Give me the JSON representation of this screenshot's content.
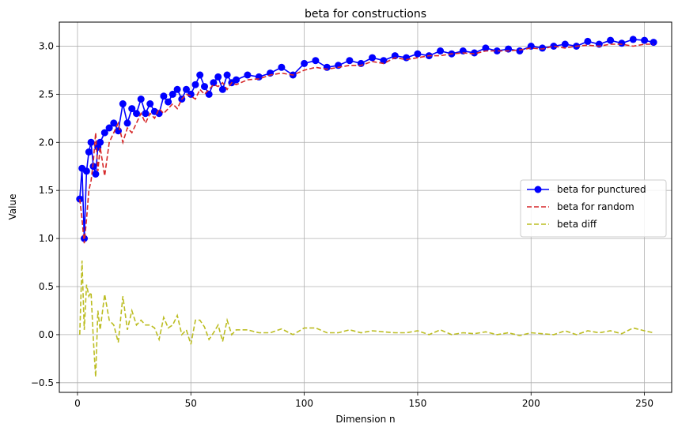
{
  "chart_data": {
    "type": "line",
    "title": "beta for constructions",
    "xlabel": "Dimension n",
    "ylabel": "Value",
    "xlim": [
      -8,
      262
    ],
    "ylim": [
      -0.6,
      3.25
    ],
    "x_ticks": [
      0,
      50,
      100,
      150,
      200,
      250
    ],
    "y_ticks": [
      -0.5,
      0.0,
      0.5,
      1.0,
      1.5,
      2.0,
      2.5,
      3.0
    ],
    "x_tick_labels": [
      "0",
      "50",
      "100",
      "150",
      "200",
      "250"
    ],
    "y_tick_labels": [
      "−0.5",
      "0.0",
      "0.5",
      "1.0",
      "1.5",
      "2.0",
      "2.5",
      "3.0"
    ],
    "grid": true,
    "legend_position": "center-right",
    "series": [
      {
        "name": "beta for punctured",
        "color": "#0000ff",
        "style": "solid-marker",
        "x": [
          1,
          2,
          3,
          4,
          5,
          6,
          7,
          8,
          9,
          10,
          12,
          14,
          16,
          18,
          20,
          22,
          24,
          26,
          28,
          30,
          32,
          34,
          36,
          38,
          40,
          42,
          44,
          46,
          48,
          50,
          52,
          54,
          56,
          58,
          60,
          62,
          64,
          66,
          68,
          70,
          75,
          80,
          85,
          90,
          95,
          100,
          105,
          110,
          115,
          120,
          125,
          130,
          135,
          140,
          145,
          150,
          155,
          160,
          165,
          170,
          175,
          180,
          185,
          190,
          195,
          200,
          205,
          210,
          215,
          220,
          225,
          230,
          235,
          240,
          245,
          250,
          254
        ],
        "y": [
          1.41,
          1.73,
          1.0,
          1.7,
          1.9,
          2.0,
          1.75,
          1.67,
          1.95,
          2.0,
          2.1,
          2.15,
          2.2,
          2.12,
          2.4,
          2.2,
          2.35,
          2.3,
          2.45,
          2.3,
          2.4,
          2.32,
          2.3,
          2.48,
          2.42,
          2.5,
          2.55,
          2.45,
          2.55,
          2.5,
          2.6,
          2.7,
          2.58,
          2.5,
          2.62,
          2.68,
          2.55,
          2.7,
          2.62,
          2.65,
          2.7,
          2.68,
          2.72,
          2.78,
          2.7,
          2.82,
          2.85,
          2.78,
          2.8,
          2.85,
          2.82,
          2.88,
          2.85,
          2.9,
          2.88,
          2.92,
          2.9,
          2.95,
          2.92,
          2.95,
          2.93,
          2.98,
          2.95,
          2.97,
          2.95,
          3.0,
          2.98,
          3.0,
          3.02,
          3.0,
          3.05,
          3.02,
          3.06,
          3.03,
          3.07,
          3.06,
          3.04
        ]
      },
      {
        "name": "beta for random",
        "color": "#d62728",
        "style": "dashed",
        "x": [
          1,
          2,
          3,
          4,
          5,
          6,
          7,
          8,
          9,
          10,
          12,
          14,
          16,
          18,
          20,
          22,
          24,
          26,
          28,
          30,
          32,
          34,
          36,
          38,
          40,
          42,
          44,
          46,
          48,
          50,
          52,
          54,
          56,
          58,
          60,
          62,
          64,
          66,
          68,
          70,
          75,
          80,
          85,
          90,
          95,
          100,
          105,
          110,
          115,
          120,
          125,
          130,
          135,
          140,
          145,
          150,
          155,
          160,
          165,
          170,
          175,
          180,
          185,
          190,
          195,
          200,
          205,
          210,
          215,
          220,
          225,
          230,
          235,
          240,
          245,
          250,
          254
        ],
        "y": [
          1.41,
          1.2,
          0.95,
          1.2,
          1.5,
          1.6,
          1.8,
          2.1,
          1.7,
          1.95,
          1.65,
          2.0,
          2.1,
          2.2,
          2.0,
          2.15,
          2.1,
          2.2,
          2.3,
          2.2,
          2.3,
          2.25,
          2.35,
          2.3,
          2.35,
          2.4,
          2.35,
          2.45,
          2.5,
          2.48,
          2.45,
          2.55,
          2.5,
          2.55,
          2.6,
          2.58,
          2.62,
          2.55,
          2.62,
          2.6,
          2.65,
          2.66,
          2.7,
          2.72,
          2.7,
          2.75,
          2.78,
          2.76,
          2.78,
          2.8,
          2.8,
          2.84,
          2.82,
          2.88,
          2.86,
          2.88,
          2.9,
          2.9,
          2.92,
          2.93,
          2.92,
          2.95,
          2.95,
          2.95,
          2.96,
          2.98,
          2.97,
          3.0,
          2.98,
          3.0,
          3.01,
          3.0,
          3.02,
          3.02,
          3.0,
          3.02,
          3.02
        ]
      },
      {
        "name": "beta diff",
        "color": "#bcbd22",
        "style": "dashed",
        "x": [
          1,
          2,
          3,
          4,
          5,
          6,
          7,
          8,
          9,
          10,
          12,
          14,
          16,
          18,
          20,
          22,
          24,
          26,
          28,
          30,
          32,
          34,
          36,
          38,
          40,
          42,
          44,
          46,
          48,
          50,
          52,
          54,
          56,
          58,
          60,
          62,
          64,
          66,
          68,
          70,
          75,
          80,
          85,
          90,
          95,
          100,
          105,
          110,
          115,
          120,
          125,
          130,
          135,
          140,
          145,
          150,
          155,
          160,
          165,
          170,
          175,
          180,
          185,
          190,
          195,
          200,
          205,
          210,
          215,
          220,
          225,
          230,
          235,
          240,
          245,
          250,
          254
        ],
        "y": [
          0.0,
          0.77,
          0.05,
          0.52,
          0.4,
          0.44,
          -0.05,
          -0.44,
          0.25,
          0.05,
          0.42,
          0.15,
          0.1,
          -0.08,
          0.4,
          0.05,
          0.25,
          0.1,
          0.15,
          0.1,
          0.1,
          0.07,
          -0.05,
          0.18,
          0.07,
          0.1,
          0.2,
          0.0,
          0.05,
          -0.1,
          0.15,
          0.15,
          0.08,
          -0.05,
          0.02,
          0.1,
          -0.07,
          0.15,
          0.0,
          0.05,
          0.05,
          0.02,
          0.02,
          0.06,
          0.0,
          0.07,
          0.07,
          0.02,
          0.02,
          0.05,
          0.02,
          0.04,
          0.03,
          0.02,
          0.02,
          0.04,
          0.0,
          0.05,
          0.0,
          0.02,
          0.01,
          0.03,
          0.0,
          0.02,
          -0.01,
          0.02,
          0.01,
          0.0,
          0.04,
          0.0,
          0.04,
          0.02,
          0.04,
          0.01,
          0.07,
          0.04,
          0.02
        ]
      }
    ]
  }
}
